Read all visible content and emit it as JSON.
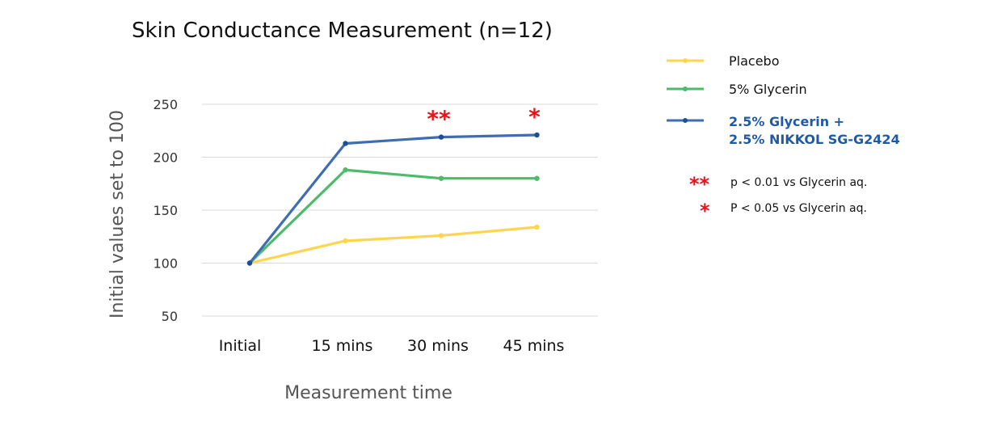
{
  "chart_data": {
    "type": "line",
    "title": "Skin Conductance Measurement (n=12)",
    "xlabel": "Measurement time",
    "ylabel": "Initial values set to 100",
    "categories": [
      "Initial",
      "15 mins",
      "30 mins",
      "45 mins"
    ],
    "yticks": [
      "250",
      "200",
      "150",
      "100",
      "50"
    ],
    "ylim": [
      50,
      250
    ],
    "grid": true,
    "legend_position": "right",
    "series": [
      {
        "name": "Placebo",
        "color": "#ffd54f",
        "values": [
          100,
          121,
          126,
          134
        ]
      },
      {
        "name": "5% Glycerin",
        "color": "#4dbb6a",
        "values": [
          100,
          188,
          180,
          180
        ]
      },
      {
        "name_line1": "2.5% Glycerin +",
        "name_line2": "2.5% NIKKOL SG-G2424",
        "label_color": "#1f5aa6",
        "color": "#3f6db3",
        "values": [
          100,
          213,
          219,
          221
        ]
      }
    ],
    "significance": [
      {
        "category": "30 mins",
        "mark": "**"
      },
      {
        "category": "45 mins",
        "mark": "*"
      }
    ],
    "notes": [
      {
        "mark": "**",
        "text": "p < 0.01 vs Glycerin aq."
      },
      {
        "mark": "*",
        "text": "P < 0.05 vs Glycerin aq."
      }
    ],
    "marker_color": "#e8131a"
  }
}
